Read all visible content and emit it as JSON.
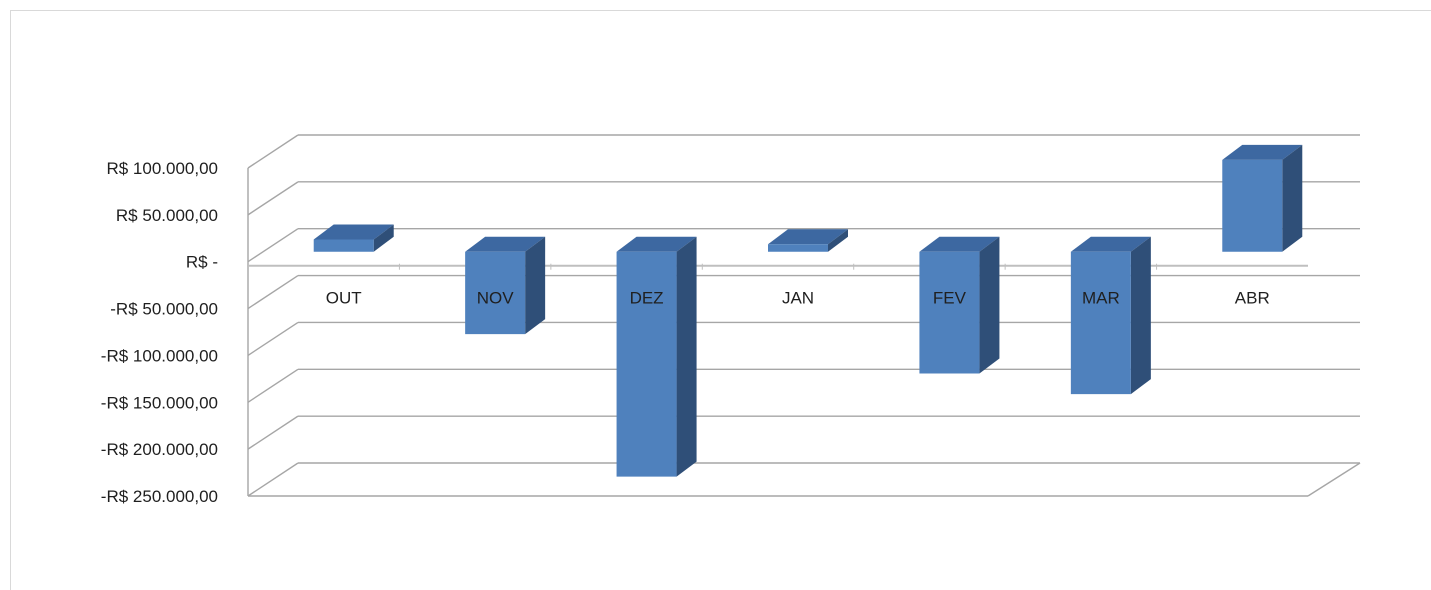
{
  "chart_data": {
    "type": "bar",
    "variant": "3d-column",
    "title": "",
    "xlabel": "",
    "ylabel": "",
    "categories": [
      "OUT",
      "NOV",
      "DEZ",
      "JAN",
      "FEV",
      "MAR",
      "ABR"
    ],
    "values": [
      13000,
      -88000,
      -240000,
      8000,
      -130000,
      -152000,
      98000
    ],
    "ylim": [
      -250000,
      100000
    ],
    "yticks": [
      100000,
      50000,
      0,
      -50000,
      -100000,
      -150000,
      -200000,
      -250000
    ],
    "ytick_labels": [
      "R$ 100.000,00",
      "R$ 50.000,00",
      "R$ -",
      "-R$ 50.000,00",
      "-R$ 100.000,00",
      "-R$ 150.000,00",
      "-R$ 200.000,00",
      "-R$ 250.000,00"
    ],
    "grid": true,
    "legend": "none",
    "colors": {
      "front": "#4f81bd",
      "side": "#2f4f78",
      "top": "#3d68a1",
      "grid": "#a6a6a6"
    }
  }
}
